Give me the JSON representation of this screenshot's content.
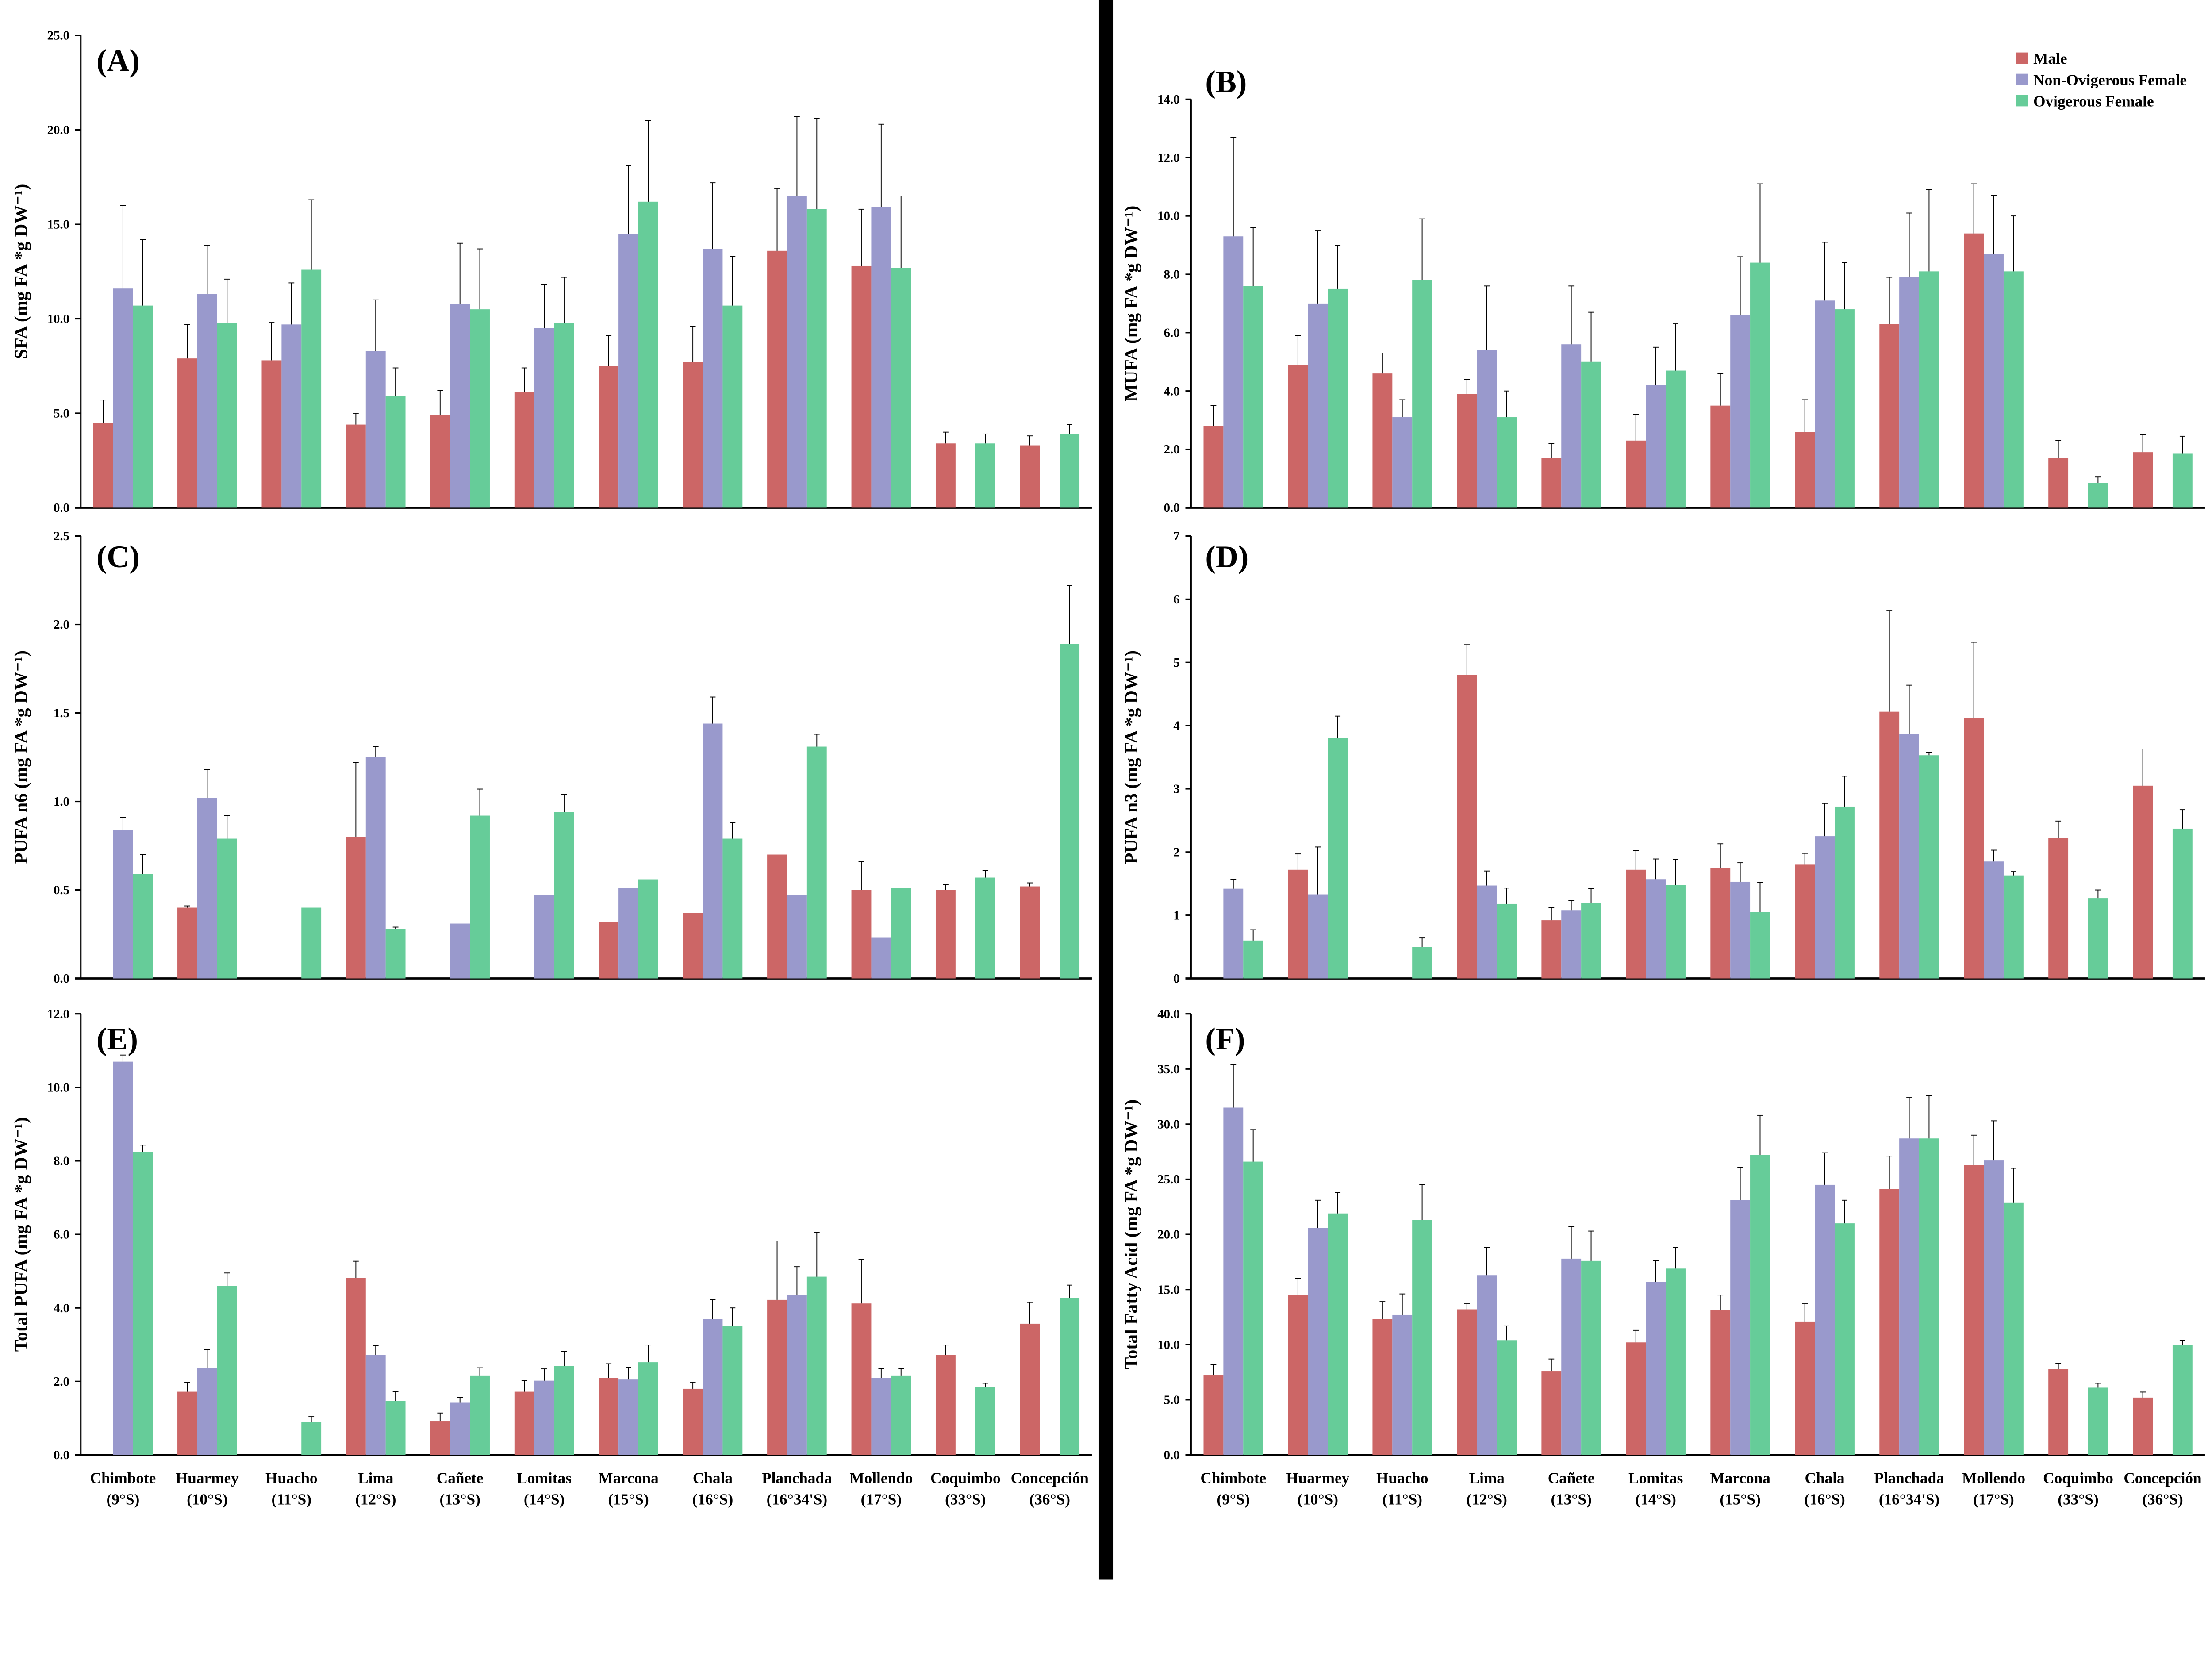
{
  "colors": {
    "Male": "#CC6666",
    "Non-Ovigerous Female": "#9999CC",
    "Ovigerous Female": "#66CC99"
  },
  "legend": [
    "Male",
    "Non-Ovigerous Female",
    "Ovigerous Female"
  ],
  "categories": [
    [
      "Chimbote",
      "(9°S)"
    ],
    [
      "Huarmey",
      "(10°S)"
    ],
    [
      "Huacho",
      "(11°S)"
    ],
    [
      "Lima",
      "(12°S)"
    ],
    [
      "Cañete",
      "(13°S)"
    ],
    [
      "Lomitas",
      "(14°S)"
    ],
    [
      "Marcona",
      "(15°S)"
    ],
    [
      "Chala",
      "(16°S)"
    ],
    [
      "Planchada",
      "(16°34'S)"
    ],
    [
      "Mollendo",
      "(17°S)"
    ],
    [
      "Coquimbo",
      "(33°S)"
    ],
    [
      "Concepción",
      "(36°S)"
    ]
  ],
  "chart_data": [
    {
      "type": "bar",
      "panel": "(A)",
      "ylabel": "SFA (mg  FA *g DW⁻¹)",
      "ylim": [
        0,
        25
      ],
      "ticks": [
        "0.0",
        "5.0",
        "10.0",
        "15.0",
        "20.0",
        "25.0"
      ],
      "tick_values": [
        0,
        5,
        10,
        15,
        20,
        25
      ],
      "series": [
        {
          "name": "Male",
          "values": [
            4.5,
            7.9,
            7.8,
            4.4,
            4.9,
            6.1,
            7.5,
            7.7,
            13.6,
            12.8,
            3.4,
            3.3
          ],
          "errors": [
            1.2,
            1.8,
            2.0,
            0.6,
            1.3,
            1.3,
            1.6,
            1.9,
            3.3,
            3.0,
            0.6,
            0.5
          ]
        },
        {
          "name": "Non-Ovigerous Female",
          "values": [
            11.6,
            11.3,
            9.7,
            8.3,
            10.8,
            9.5,
            14.5,
            13.7,
            16.5,
            15.9,
            null,
            null
          ],
          "errors": [
            4.4,
            2.6,
            2.2,
            2.7,
            3.2,
            2.3,
            3.6,
            3.5,
            4.2,
            4.4,
            null,
            null
          ]
        },
        {
          "name": "Ovigerous Female",
          "values": [
            10.7,
            9.8,
            12.6,
            5.9,
            10.5,
            9.8,
            16.2,
            10.7,
            15.8,
            12.7,
            3.4,
            3.9
          ],
          "errors": [
            3.5,
            2.3,
            3.7,
            1.5,
            3.2,
            2.4,
            4.3,
            2.6,
            4.8,
            3.8,
            0.5,
            0.5
          ]
        }
      ]
    },
    {
      "type": "bar",
      "panel": "(B)",
      "ylabel": "MUFA (mg FA *g DW⁻¹)",
      "ylim": [
        0,
        14
      ],
      "ticks": [
        "0.0",
        "2.0",
        "4.0",
        "6.0",
        "8.0",
        "10.0",
        "12.0",
        "14.0"
      ],
      "tick_values": [
        0,
        2,
        4,
        6,
        8,
        10,
        12,
        14
      ],
      "series": [
        {
          "name": "Male",
          "values": [
            2.8,
            4.9,
            4.6,
            3.9,
            1.7,
            2.3,
            3.5,
            2.6,
            6.3,
            9.4,
            1.7,
            1.9
          ],
          "errors": [
            0.7,
            1.0,
            0.7,
            0.5,
            0.5,
            0.9,
            1.1,
            1.1,
            1.6,
            1.7,
            0.6,
            0.6
          ]
        },
        {
          "name": "Non-Ovigerous Female",
          "values": [
            9.3,
            7.0,
            3.1,
            5.4,
            5.6,
            4.2,
            6.6,
            7.1,
            7.9,
            8.7,
            null,
            null
          ],
          "errors": [
            3.4,
            2.5,
            0.6,
            2.2,
            2.0,
            1.3,
            2.0,
            2.0,
            2.2,
            2.0,
            null,
            null
          ]
        },
        {
          "name": "Ovigerous Female",
          "values": [
            7.6,
            7.5,
            7.8,
            3.1,
            5.0,
            4.7,
            8.4,
            6.8,
            8.1,
            8.1,
            0.85,
            1.85
          ],
          "errors": [
            2.0,
            1.5,
            2.1,
            0.9,
            1.7,
            1.6,
            2.7,
            1.6,
            2.8,
            1.9,
            0.2,
            0.6
          ]
        }
      ]
    },
    {
      "type": "bar",
      "panel": "(C)",
      "ylabel": "PUFA n6 (mg  FA *g DW⁻¹)",
      "ylim": [
        0,
        2.5
      ],
      "ticks": [
        "0.0",
        "0.5",
        "1.0",
        "1.5",
        "2.0",
        "2.5"
      ],
      "tick_values": [
        0,
        0.5,
        1,
        1.5,
        2,
        2.5
      ],
      "series": [
        {
          "name": "Male",
          "values": [
            null,
            0.4,
            null,
            0.8,
            null,
            null,
            0.32,
            0.37,
            0.7,
            0.5,
            0.5,
            0.52
          ],
          "errors": [
            null,
            0.01,
            null,
            0.42,
            null,
            null,
            0,
            0,
            0,
            0.16,
            0.03,
            0.02
          ]
        },
        {
          "name": "Non-Ovigerous Female",
          "values": [
            0.84,
            1.02,
            null,
            1.25,
            0.31,
            0.47,
            0.51,
            1.44,
            0.47,
            0.23,
            null,
            null
          ],
          "errors": [
            0.07,
            0.16,
            null,
            0.06,
            0,
            0,
            0,
            0.15,
            0,
            0,
            null,
            null
          ]
        },
        {
          "name": "Ovigerous Female",
          "values": [
            0.59,
            0.79,
            0.4,
            0.28,
            0.92,
            0.94,
            0.56,
            0.79,
            1.31,
            0.51,
            0.57,
            1.89
          ],
          "errors": [
            0.11,
            0.13,
            0,
            0.01,
            0.15,
            0.1,
            0,
            0.09,
            0.07,
            0,
            0.04,
            0.33
          ]
        }
      ]
    },
    {
      "type": "bar",
      "panel": "(D)",
      "ylabel": "PUFA n3 (mg FA *g DW⁻¹)",
      "ylim": [
        0,
        7
      ],
      "ticks": [
        "0",
        "1",
        "2",
        "3",
        "4",
        "5",
        "6",
        "7"
      ],
      "tick_values": [
        0,
        1,
        2,
        3,
        4,
        5,
        6,
        7
      ],
      "series": [
        {
          "name": "Male",
          "values": [
            null,
            1.72,
            null,
            4.8,
            0.92,
            1.72,
            1.75,
            1.8,
            4.22,
            4.12,
            2.22,
            3.05
          ],
          "errors": [
            null,
            0.25,
            null,
            0.48,
            0.2,
            0.3,
            0.38,
            0.18,
            1.6,
            1.2,
            0.27,
            0.58
          ]
        },
        {
          "name": "Non-Ovigerous Female",
          "values": [
            1.42,
            1.33,
            null,
            1.47,
            1.08,
            1.57,
            1.53,
            2.25,
            3.87,
            1.85,
            null,
            null
          ],
          "errors": [
            0.15,
            0.75,
            null,
            0.23,
            0.15,
            0.32,
            0.3,
            0.52,
            0.77,
            0.18,
            null,
            null
          ]
        },
        {
          "name": "Ovigerous Female",
          "values": [
            0.6,
            3.8,
            0.5,
            1.18,
            1.2,
            1.48,
            1.05,
            2.72,
            3.53,
            1.63,
            1.27,
            2.37
          ],
          "errors": [
            0.17,
            0.35,
            0.14,
            0.25,
            0.22,
            0.4,
            0.47,
            0.48,
            0.05,
            0.06,
            0.13,
            0.3
          ]
        }
      ]
    },
    {
      "type": "bar",
      "panel": "(E)",
      "ylabel": "Total PUFA (mg FA *g DW⁻¹)",
      "ylim": [
        0,
        12
      ],
      "ticks": [
        "0.0",
        "2.0",
        "4.0",
        "6.0",
        "8.0",
        "10.0",
        "12.0"
      ],
      "tick_values": [
        0,
        2,
        4,
        6,
        8,
        10,
        12
      ],
      "series": [
        {
          "name": "Male",
          "values": [
            null,
            1.72,
            null,
            4.82,
            0.92,
            1.72,
            2.1,
            1.8,
            4.22,
            4.12,
            2.72,
            3.57
          ],
          "errors": [
            null,
            0.25,
            null,
            0.45,
            0.22,
            0.3,
            0.38,
            0.18,
            1.6,
            1.2,
            0.27,
            0.58
          ]
        },
        {
          "name": "Non-Ovigerous Female",
          "values": [
            10.7,
            2.37,
            null,
            2.72,
            1.42,
            2.02,
            2.05,
            3.7,
            4.35,
            2.1,
            null,
            null
          ],
          "errors": [
            0.18,
            0.5,
            null,
            0.25,
            0.15,
            0.32,
            0.33,
            0.52,
            0.77,
            0.25,
            null,
            null
          ]
        },
        {
          "name": "Ovigerous Female",
          "values": [
            8.25,
            4.6,
            0.9,
            1.47,
            2.15,
            2.42,
            2.52,
            3.52,
            4.85,
            2.15,
            1.85,
            4.27
          ],
          "errors": [
            0.18,
            0.35,
            0.14,
            0.25,
            0.22,
            0.4,
            0.47,
            0.48,
            1.2,
            0.2,
            0.1,
            0.35
          ]
        }
      ]
    },
    {
      "type": "bar",
      "panel": "(F)",
      "ylabel": "Total Fatty Acid (mg FA *g DW⁻¹)",
      "ylim": [
        0,
        40
      ],
      "ticks": [
        "0.0",
        "5.0",
        "10.0",
        "15.0",
        "20.0",
        "25.0",
        "30.0",
        "35.0",
        "40.0"
      ],
      "tick_values": [
        0,
        5,
        10,
        15,
        20,
        25,
        30,
        35,
        40
      ],
      "series": [
        {
          "name": "Male",
          "values": [
            7.2,
            14.5,
            12.3,
            13.2,
            7.6,
            10.2,
            13.1,
            12.1,
            24.1,
            26.3,
            7.8,
            5.2
          ],
          "errors": [
            1.0,
            1.5,
            1.6,
            0.5,
            1.1,
            1.1,
            1.4,
            1.6,
            3.0,
            2.7,
            0.5,
            0.5
          ]
        },
        {
          "name": "Non-Ovigerous Female",
          "values": [
            31.5,
            20.6,
            12.7,
            16.3,
            17.8,
            15.7,
            23.1,
            24.5,
            28.7,
            26.7,
            null,
            null
          ],
          "errors": [
            3.9,
            2.5,
            1.9,
            2.5,
            2.9,
            1.9,
            3.0,
            2.9,
            3.7,
            3.6,
            null,
            null
          ]
        },
        {
          "name": "Ovigerous Female",
          "values": [
            26.6,
            21.9,
            21.3,
            10.4,
            17.6,
            16.9,
            27.2,
            21.0,
            28.7,
            22.9,
            6.1,
            10.0
          ],
          "errors": [
            2.9,
            1.9,
            3.2,
            1.3,
            2.7,
            1.9,
            3.6,
            2.1,
            3.9,
            3.1,
            0.4,
            0.4
          ]
        }
      ]
    }
  ]
}
